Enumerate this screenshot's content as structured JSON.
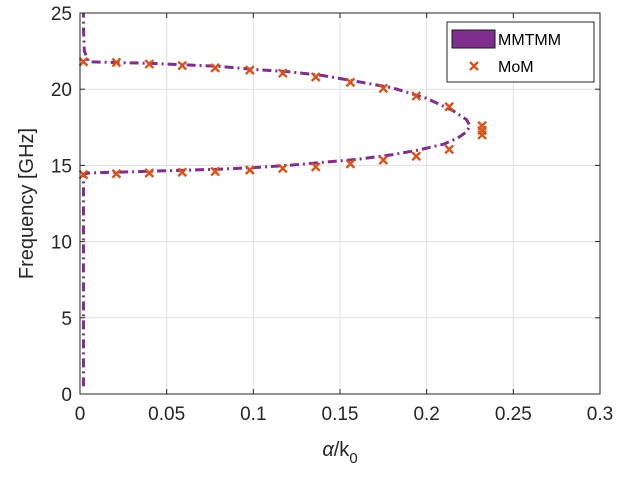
{
  "chart_data": {
    "type": "line",
    "xlabel": "α/k0",
    "ylabel": "Frequency [GHz]",
    "xlim": [
      0,
      0.3
    ],
    "ylim": [
      0,
      25
    ],
    "xticks": [
      "0",
      "0.05",
      "0.1",
      "0.15",
      "0.2",
      "0.25",
      "0.3"
    ],
    "yticks": [
      "0",
      "5",
      "10",
      "15",
      "20",
      "25"
    ],
    "grid": true,
    "legend": "top-right",
    "series": [
      {
        "name": "MMTMM",
        "style": "dash-dot line",
        "color": "#7E2F8E",
        "x": [
          0.002,
          0.002,
          0.002,
          0.002,
          0.002,
          0.002,
          0.002,
          0.002,
          0.002,
          0.002,
          0.0025,
          0.003,
          0.005,
          0.02,
          0.05,
          0.08,
          0.1,
          0.12,
          0.14,
          0.16,
          0.18,
          0.195,
          0.21,
          0.218,
          0.223,
          0.225,
          0.223,
          0.215,
          0.2,
          0.18,
          0.16,
          0.14,
          0.12,
          0.1,
          0.08,
          0.06,
          0.04,
          0.02,
          0.005,
          0.0025,
          0.002,
          0.002
        ],
        "y": [
          0.5,
          2.0,
          4.0,
          6.0,
          8.0,
          10.0,
          12.0,
          13.5,
          14.0,
          14.2,
          14.35,
          14.45,
          14.5,
          14.55,
          14.65,
          14.75,
          14.85,
          15.0,
          15.2,
          15.4,
          15.7,
          16.0,
          16.4,
          16.8,
          17.2,
          17.6,
          18.0,
          18.6,
          19.4,
          20.1,
          20.5,
          20.9,
          21.15,
          21.3,
          21.5,
          21.6,
          21.7,
          21.75,
          21.8,
          22.5,
          24.0,
          25.0
        ]
      },
      {
        "name": "MoM",
        "style": "x markers",
        "color": "#D95319",
        "x": [
          0.002,
          0.021,
          0.04,
          0.059,
          0.078,
          0.098,
          0.117,
          0.136,
          0.156,
          0.175,
          0.194,
          0.213,
          0.232,
          0.232,
          0.232,
          0.002,
          0.021,
          0.04,
          0.059,
          0.078,
          0.098,
          0.117,
          0.136,
          0.156,
          0.175,
          0.194,
          0.213
        ],
        "y": [
          21.8,
          21.75,
          21.65,
          21.55,
          21.4,
          21.25,
          21.05,
          20.8,
          20.45,
          20.05,
          19.55,
          18.85,
          17.6,
          17.3,
          17.0,
          14.4,
          14.45,
          14.5,
          14.55,
          14.6,
          14.7,
          14.8,
          14.9,
          15.1,
          15.35,
          15.6,
          16.05
        ]
      }
    ]
  }
}
